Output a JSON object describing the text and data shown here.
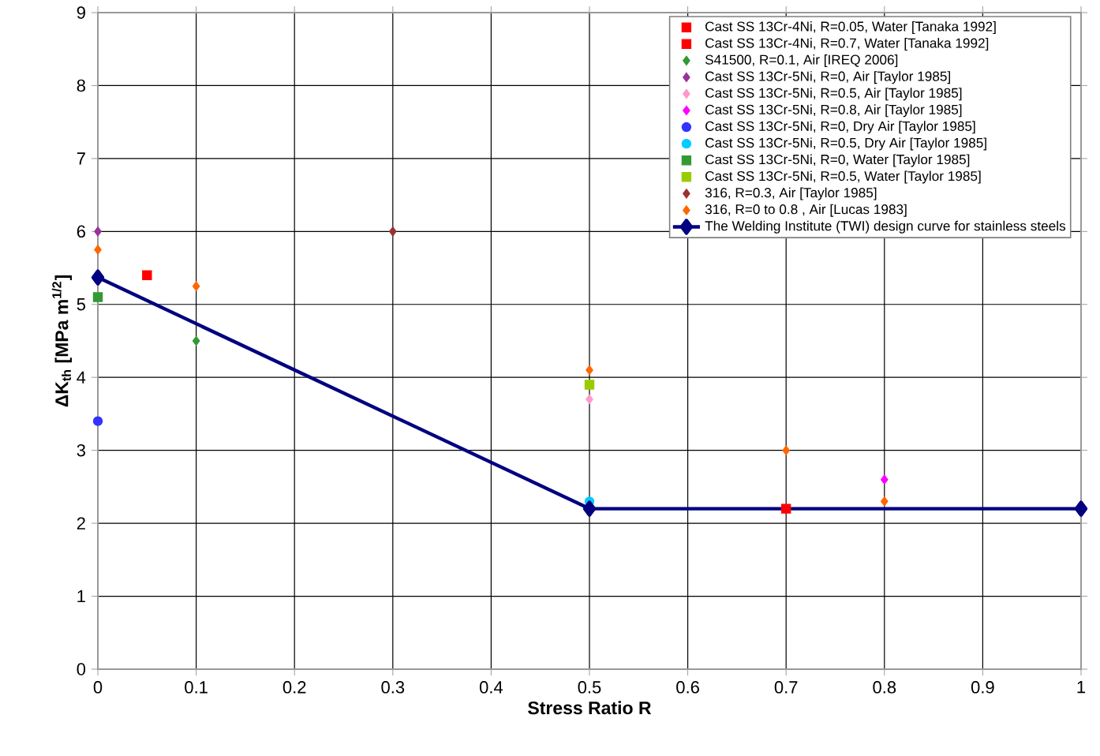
{
  "chart_data": {
    "type": "scatter",
    "xlabel": "Stress Ratio R",
    "ylabel": "ΔK$_{th}$ [MPa m$^{1/2}$]",
    "xlim": [
      0,
      1
    ],
    "ylim": [
      0,
      9
    ],
    "xticks": [
      0,
      0.1,
      0.2,
      0.3,
      0.4,
      0.5,
      0.6,
      0.7,
      0.8,
      0.9,
      1
    ],
    "yticks": [
      0,
      1,
      2,
      3,
      4,
      5,
      6,
      7,
      8,
      9
    ],
    "grid": true,
    "legend": "top right",
    "series": [
      {
        "name": "Cast SS 13Cr-4Ni, R=0.05, Water [Tanaka 1992]",
        "color": "#ff0000",
        "marker": "square",
        "x": [
          0.05
        ],
        "values": [
          5.4
        ]
      },
      {
        "name": "Cast SS 13Cr-4Ni, R=0.7, Water [Tanaka 1992]",
        "color": "#ff0000",
        "marker": "square",
        "x": [
          0.7
        ],
        "values": [
          2.2
        ]
      },
      {
        "name": "S41500, R=0.1, Air [IREQ 2006]",
        "color": "#339933",
        "marker": "diamond",
        "x": [
          0.1
        ],
        "values": [
          4.5
        ]
      },
      {
        "name": "Cast SS 13Cr-5Ni, R=0, Air [Taylor 1985]",
        "color": "#993399",
        "marker": "diamond",
        "x": [
          0
        ],
        "values": [
          6.0
        ]
      },
      {
        "name": "Cast SS 13Cr-5Ni, R=0.5, Air [Taylor 1985]",
        "color": "#ff99cc",
        "marker": "diamond",
        "x": [
          0.5
        ],
        "values": [
          3.7
        ]
      },
      {
        "name": "Cast SS 13Cr-5Ni, R=0.8, Air [Taylor 1985]",
        "color": "#ff00ff",
        "marker": "diamond",
        "x": [
          0.8
        ],
        "values": [
          2.6
        ]
      },
      {
        "name": "Cast SS 13Cr-5Ni, R=0, Dry Air [Taylor 1985]",
        "color": "#3333ff",
        "marker": "circle",
        "x": [
          0
        ],
        "values": [
          3.4
        ]
      },
      {
        "name": "Cast SS 13Cr-5Ni, R=0.5, Dry Air [Taylor 1985]",
        "color": "#00ccff",
        "marker": "circle",
        "x": [
          0.5
        ],
        "values": [
          2.3
        ]
      },
      {
        "name": "Cast SS 13Cr-5Ni, R=0, Water [Taylor 1985]",
        "color": "#339933",
        "marker": "square",
        "x": [
          0
        ],
        "values": [
          5.1
        ]
      },
      {
        "name": "Cast SS 13Cr-5Ni, R=0.5, Water [Taylor 1985]",
        "color": "#99cc00",
        "marker": "square",
        "x": [
          0.5
        ],
        "values": [
          3.9
        ]
      },
      {
        "name": "316, R=0.3, Air [Taylor 1985]",
        "color": "#993333",
        "marker": "diamond",
        "x": [
          0.3
        ],
        "values": [
          6.0
        ]
      },
      {
        "name": "316, R=0 to 0.8 , Air [Lucas 1983]",
        "color": "#ff6600",
        "marker": "diamond",
        "x": [
          0,
          0.1,
          0.5,
          0.7,
          0.8
        ],
        "values": [
          5.75,
          5.25,
          4.1,
          3.0,
          2.3
        ]
      },
      {
        "name": "The Welding Institute (TWI) design curve for stainless steels",
        "type": "line",
        "color": "#000080",
        "marker": "diamond",
        "x": [
          0,
          0.5,
          1
        ],
        "values": [
          5.37,
          2.2,
          2.2
        ]
      }
    ]
  }
}
